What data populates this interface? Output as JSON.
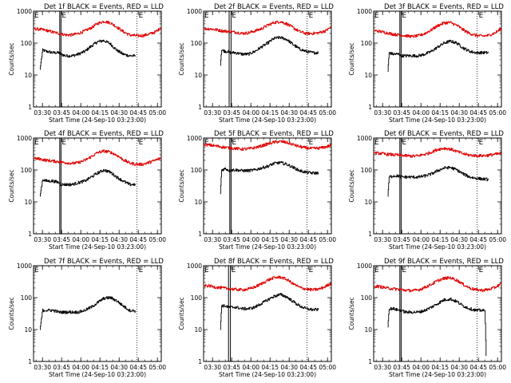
{
  "colors": {
    "events": "#000000",
    "lld": "#e00000",
    "axes": "#000000",
    "background": "#ffffff"
  },
  "common": {
    "xlabel": "Start Time (24-Sep-10 03:23:00)",
    "ylabel": "Counts/sec",
    "x_ticks": [
      "03:30",
      "03:45",
      "04:00",
      "04:15",
      "04:30",
      "04:45",
      "05:00"
    ],
    "x_tick_minutes": [
      7,
      22,
      37,
      52,
      67,
      82,
      97
    ],
    "y_ticks": [
      "1",
      "10",
      "100",
      "1000"
    ],
    "y_tick_values": [
      1,
      10,
      100,
      1000
    ],
    "xlim_minutes": [
      0,
      100
    ],
    "ylim": [
      1,
      1000
    ],
    "y_scale": "log",
    "flag_label": "E",
    "flag_line_minutes": 81
  },
  "chart_data": [
    {
      "type": "line",
      "title": "Det 1f BLACK = Events, RED = LLD",
      "xlabel": "Start Time (24-Sep-10 03:23:00)",
      "ylabel": "Counts/sec",
      "ylim": [
        1,
        1000
      ],
      "flag_label": "E",
      "x_tick_labels": [
        "03:30",
        "03:45",
        "04:00",
        "04:15",
        "04:30",
        "04:45",
        "05:00"
      ],
      "y_tick_labels": [
        "1",
        "10",
        "100",
        "1000"
      ],
      "gaps": [
        [
          20.5,
          21.5
        ]
      ],
      "series": [
        {
          "name": "Events",
          "color": "#000000",
          "x": [
            5,
            7,
            10,
            15,
            20,
            21,
            25,
            30,
            35,
            40,
            45,
            50,
            55,
            60,
            65,
            70,
            75,
            80
          ],
          "y": [
            15,
            60,
            55,
            50,
            50,
            45,
            40,
            40,
            45,
            55,
            80,
            110,
            120,
            95,
            60,
            45,
            40,
            40
          ]
        },
        {
          "name": "LLD",
          "color": "#e00000",
          "x": [
            0,
            5,
            10,
            15,
            20,
            25,
            30,
            35,
            40,
            45,
            50,
            55,
            60,
            65,
            70,
            75,
            80,
            85,
            90,
            95,
            100
          ],
          "y": [
            280,
            270,
            250,
            220,
            200,
            180,
            180,
            200,
            240,
            300,
            410,
            480,
            430,
            320,
            230,
            180,
            170,
            170,
            190,
            220,
            310
          ]
        }
      ]
    },
    {
      "type": "line",
      "title": "Det 2f BLACK = Events, RED = LLD",
      "xlabel": "Start Time (24-Sep-10 03:23:00)",
      "ylabel": "Counts/sec",
      "ylim": [
        1,
        1000
      ],
      "flag_label": "E",
      "x_tick_labels": [
        "03:30",
        "03:45",
        "04:00",
        "04:15",
        "04:30",
        "04:45",
        "05:00"
      ],
      "y_tick_labels": [
        "1",
        "10",
        "100",
        "1000"
      ],
      "gaps": [
        [
          20,
          21.5
        ]
      ],
      "series": [
        {
          "name": "Events",
          "color": "#000000",
          "x": [
            13,
            14,
            17,
            19,
            20,
            22,
            25,
            30,
            35,
            40,
            45,
            50,
            55,
            60,
            65,
            70,
            75,
            80,
            85,
            90
          ],
          "y": [
            20,
            60,
            55,
            55,
            50,
            50,
            50,
            45,
            45,
            55,
            75,
            100,
            140,
            150,
            130,
            90,
            65,
            55,
            50,
            50
          ]
        },
        {
          "name": "LLD",
          "color": "#e00000",
          "x": [
            0,
            5,
            10,
            15,
            20,
            25,
            30,
            35,
            40,
            45,
            50,
            55,
            60,
            65,
            70,
            75,
            80,
            85,
            90,
            95,
            100
          ],
          "y": [
            280,
            280,
            260,
            240,
            230,
            220,
            200,
            210,
            240,
            280,
            360,
            440,
            470,
            400,
            300,
            230,
            200,
            200,
            210,
            240,
            320
          ]
        }
      ]
    },
    {
      "type": "line",
      "title": "Det 3f BLACK = Events, RED = LLD",
      "xlabel": "Start Time (24-Sep-10 03:23:00)",
      "ylabel": "Counts/sec",
      "ylim": [
        1,
        1000
      ],
      "flag_label": "E",
      "x_tick_labels": [
        "03:30",
        "03:45",
        "04:00",
        "04:15",
        "04:30",
        "04:45",
        "05:00"
      ],
      "y_tick_labels": [
        "1",
        "10",
        "100",
        "1000"
      ],
      "gaps": [
        [
          20.5,
          21.5
        ]
      ],
      "series": [
        {
          "name": "Events",
          "color": "#000000",
          "x": [
            11,
            12,
            15,
            20,
            21,
            25,
            30,
            35,
            40,
            45,
            50,
            55,
            60,
            65,
            70,
            75,
            80,
            85,
            90
          ],
          "y": [
            13,
            50,
            45,
            45,
            40,
            40,
            40,
            40,
            45,
            55,
            75,
            100,
            115,
            100,
            70,
            55,
            50,
            50,
            50
          ]
        },
        {
          "name": "LLD",
          "color": "#e00000",
          "x": [
            0,
            5,
            10,
            15,
            20,
            25,
            30,
            35,
            40,
            45,
            50,
            55,
            60,
            65,
            70,
            75,
            80,
            85,
            90,
            95,
            100
          ],
          "y": [
            250,
            230,
            210,
            190,
            180,
            170,
            160,
            170,
            200,
            260,
            350,
            430,
            440,
            360,
            260,
            200,
            175,
            165,
            175,
            210,
            290
          ]
        }
      ]
    },
    {
      "type": "line",
      "title": "Det 4f BLACK = Events, RED = LLD",
      "xlabel": "Start Time (24-Sep-10 03:23:00)",
      "ylabel": "Counts/sec",
      "ylim": [
        1,
        1000
      ],
      "flag_label": "E",
      "x_tick_labels": [
        "03:30",
        "03:45",
        "04:00",
        "04:15",
        "04:30",
        "04:45",
        "05:00"
      ],
      "y_tick_labels": [
        "1",
        "10",
        "100",
        "1000"
      ],
      "gaps": [
        [
          20.5,
          21.5
        ]
      ],
      "series": [
        {
          "name": "Events",
          "color": "#000000",
          "x": [
            5,
            7,
            10,
            15,
            20,
            21,
            25,
            30,
            35,
            40,
            45,
            50,
            55,
            60,
            65,
            70,
            75,
            80
          ],
          "y": [
            15,
            50,
            45,
            45,
            40,
            35,
            35,
            35,
            40,
            45,
            60,
            80,
            100,
            85,
            60,
            45,
            35,
            35
          ]
        },
        {
          "name": "LLD",
          "color": "#e00000",
          "x": [
            0,
            5,
            10,
            15,
            20,
            25,
            30,
            35,
            40,
            45,
            50,
            55,
            60,
            65,
            70,
            75,
            80,
            85,
            90,
            95,
            100
          ],
          "y": [
            230,
            220,
            200,
            190,
            180,
            170,
            160,
            170,
            200,
            260,
            350,
            390,
            360,
            290,
            210,
            165,
            150,
            150,
            170,
            200,
            240
          ]
        }
      ]
    },
    {
      "type": "line",
      "title": "Det 5f BLACK = Events, RED = LLD",
      "xlabel": "Start Time (24-Sep-10 03:23:00)",
      "ylabel": "Counts/sec",
      "ylim": [
        1,
        1000
      ],
      "flag_label": "E",
      "x_tick_labels": [
        "03:30",
        "03:45",
        "04:00",
        "04:15",
        "04:30",
        "04:45",
        "05:00"
      ],
      "y_tick_labels": [
        "1",
        "10",
        "100",
        "1000"
      ],
      "gaps": [
        [
          20.5,
          21.5
        ]
      ],
      "series": [
        {
          "name": "Events",
          "color": "#000000",
          "x": [
            13,
            14,
            17,
            19,
            20,
            22,
            25,
            30,
            35,
            40,
            45,
            50,
            55,
            60,
            65,
            70,
            75,
            80,
            85,
            90
          ],
          "y": [
            18,
            100,
            110,
            100,
            95,
            100,
            100,
            95,
            95,
            100,
            115,
            130,
            160,
            170,
            150,
            120,
            95,
            85,
            80,
            80
          ]
        },
        {
          "name": "LLD",
          "color": "#e00000",
          "x": [
            0,
            5,
            10,
            15,
            20,
            25,
            30,
            35,
            40,
            45,
            50,
            55,
            60,
            65,
            70,
            75,
            80,
            85,
            90,
            95,
            100
          ],
          "y": [
            620,
            600,
            560,
            520,
            490,
            470,
            450,
            460,
            500,
            560,
            650,
            740,
            780,
            720,
            620,
            540,
            490,
            470,
            480,
            520,
            600
          ]
        }
      ]
    },
    {
      "type": "line",
      "title": "Det 6f BLACK = Events, RED = LLD",
      "xlabel": "Start Time (24-Sep-10 03:23:00)",
      "ylabel": "Counts/sec",
      "ylim": [
        1,
        1000
      ],
      "flag_label": "E",
      "x_tick_labels": [
        "03:30",
        "03:45",
        "04:00",
        "04:15",
        "04:30",
        "04:45",
        "05:00"
      ],
      "y_tick_labels": [
        "1",
        "10",
        "100",
        "1000"
      ],
      "gaps": [
        [
          20.5,
          21.5
        ]
      ],
      "series": [
        {
          "name": "Events",
          "color": "#000000",
          "x": [
            11,
            12,
            15,
            20,
            21,
            25,
            30,
            35,
            40,
            45,
            50,
            55,
            60,
            65,
            70,
            75,
            80,
            85,
            90
          ],
          "y": [
            15,
            60,
            65,
            65,
            60,
            60,
            60,
            60,
            65,
            75,
            95,
            115,
            120,
            100,
            75,
            60,
            55,
            52,
            50
          ]
        },
        {
          "name": "LLD",
          "color": "#e00000",
          "x": [
            0,
            5,
            10,
            15,
            20,
            25,
            30,
            35,
            40,
            45,
            50,
            55,
            60,
            65,
            70,
            75,
            80,
            85,
            90,
            95,
            100
          ],
          "y": [
            340,
            330,
            310,
            300,
            290,
            280,
            270,
            280,
            310,
            360,
            440,
            480,
            450,
            380,
            320,
            290,
            280,
            280,
            290,
            310,
            330
          ]
        }
      ]
    },
    {
      "type": "line",
      "title": "Det 7f BLACK = Events, RED = LLD",
      "xlabel": "Start Time (24-Sep-10 03:23:00)",
      "ylabel": "Counts/sec",
      "ylim": [
        1,
        1000
      ],
      "flag_label": "E",
      "x_tick_labels": [
        "03:30",
        "03:45",
        "04:00",
        "04:15",
        "04:30",
        "04:45",
        "05:00"
      ],
      "y_tick_labels": [
        "1",
        "10",
        "100",
        "1000"
      ],
      "gaps": [],
      "series": [
        {
          "name": "Events",
          "color": "#000000",
          "x": [
            5,
            7,
            10,
            15,
            20,
            25,
            30,
            35,
            40,
            45,
            50,
            55,
            60,
            65,
            70,
            75,
            80
          ],
          "y": [
            10,
            40,
            40,
            40,
            35,
            35,
            35,
            35,
            40,
            50,
            70,
            95,
            100,
            80,
            55,
            40,
            38
          ]
        }
      ]
    },
    {
      "type": "line",
      "title": "Det 8f BLACK = Events, RED = LLD",
      "xlabel": "Start Time (24-Sep-10 03:23:00)",
      "ylabel": "Counts/sec",
      "ylim": [
        1,
        1000
      ],
      "flag_label": "E",
      "x_tick_labels": [
        "03:30",
        "03:45",
        "04:00",
        "04:15",
        "04:30",
        "04:45",
        "05:00"
      ],
      "y_tick_labels": [
        "1",
        "10",
        "100",
        "1000"
      ],
      "gaps": [
        [
          19.5,
          21
        ]
      ],
      "series": [
        {
          "name": "Events",
          "color": "#000000",
          "x": [
            13,
            14,
            17,
            19,
            21,
            25,
            30,
            35,
            40,
            45,
            50,
            55,
            60,
            65,
            70,
            75,
            80,
            85,
            90
          ],
          "y": [
            10,
            55,
            55,
            50,
            50,
            50,
            45,
            45,
            50,
            65,
            85,
            110,
            125,
            105,
            75,
            55,
            45,
            42,
            42
          ]
        },
        {
          "name": "LLD",
          "color": "#e00000",
          "x": [
            0,
            5,
            10,
            15,
            20,
            25,
            30,
            35,
            40,
            45,
            50,
            55,
            60,
            65,
            70,
            75,
            80,
            85,
            90,
            95,
            100
          ],
          "y": [
            240,
            230,
            210,
            200,
            190,
            180,
            175,
            185,
            215,
            270,
            350,
            420,
            440,
            370,
            270,
            210,
            185,
            175,
            185,
            220,
            290
          ]
        }
      ]
    },
    {
      "type": "line",
      "title": "Det 9f BLACK = Events, RED = LLD",
      "xlabel": "Start Time (24-Sep-10 03:23:00)",
      "ylabel": "Counts/sec",
      "ylim": [
        1,
        1000
      ],
      "flag_label": "E",
      "x_tick_labels": [
        "03:30",
        "03:45",
        "04:00",
        "04:15",
        "04:30",
        "04:45",
        "05:00"
      ],
      "y_tick_labels": [
        "1",
        "10",
        "100",
        "1000"
      ],
      "gaps": [
        [
          20.5,
          21.5
        ]
      ],
      "series": [
        {
          "name": "Events",
          "color": "#000000",
          "x": [
            11,
            12,
            15,
            20,
            21,
            25,
            30,
            35,
            40,
            45,
            50,
            55,
            60,
            65,
            70,
            75,
            80,
            85,
            87,
            88
          ],
          "y": [
            12,
            45,
            45,
            40,
            40,
            35,
            35,
            35,
            40,
            50,
            65,
            85,
            90,
            75,
            55,
            45,
            40,
            40,
            38,
            1.5
          ]
        },
        {
          "name": "LLD",
          "color": "#e00000",
          "x": [
            0,
            5,
            10,
            15,
            20,
            25,
            30,
            35,
            40,
            45,
            50,
            55,
            60,
            65,
            70,
            75,
            80,
            85,
            90,
            95,
            100
          ],
          "y": [
            230,
            220,
            200,
            190,
            180,
            170,
            165,
            175,
            210,
            260,
            340,
            400,
            420,
            350,
            260,
            200,
            175,
            170,
            180,
            210,
            280
          ]
        }
      ]
    }
  ]
}
